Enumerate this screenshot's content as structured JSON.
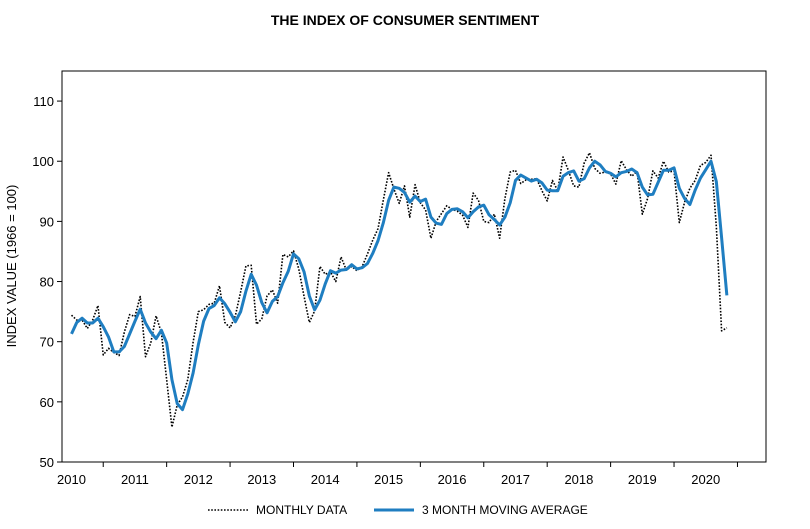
{
  "chart_data": {
    "type": "line",
    "title": "THE INDEX OF CONSUMER SENTIMENT",
    "xlabel": "",
    "ylabel": "INDEX VALUE (1966 = 100)",
    "ylim": [
      50,
      115
    ],
    "xlim": [
      2009.85,
      2020.95
    ],
    "yticks": [
      50,
      60,
      70,
      80,
      90,
      100,
      110
    ],
    "xticks": [
      2010,
      2011,
      2012,
      2013,
      2014,
      2015,
      2016,
      2017,
      2018,
      2019,
      2020
    ],
    "xtick_labels": [
      "2010",
      "2011",
      "2012",
      "2013",
      "2014",
      "2015",
      "2016",
      "2017",
      "2018",
      "2019",
      "2020"
    ],
    "grid": false,
    "legend_position": "bottom",
    "colors": {
      "monthly": "#000000",
      "moving_average": "#1f7ec1"
    },
    "series": [
      {
        "name": "MONTHLY DATA",
        "style": "dotted",
        "x": [
          2010.0,
          2010.083,
          2010.167,
          2010.25,
          2010.333,
          2010.417,
          2010.5,
          2010.583,
          2010.667,
          2010.75,
          2010.833,
          2010.917,
          2011.0,
          2011.083,
          2011.167,
          2011.25,
          2011.333,
          2011.417,
          2011.5,
          2011.583,
          2011.667,
          2011.75,
          2011.833,
          2011.917,
          2012.0,
          2012.083,
          2012.167,
          2012.25,
          2012.333,
          2012.417,
          2012.5,
          2012.583,
          2012.667,
          2012.75,
          2012.833,
          2012.917,
          2013.0,
          2013.083,
          2013.167,
          2013.25,
          2013.333,
          2013.417,
          2013.5,
          2013.583,
          2013.667,
          2013.75,
          2013.833,
          2013.917,
          2014.0,
          2014.083,
          2014.167,
          2014.25,
          2014.333,
          2014.417,
          2014.5,
          2014.583,
          2014.667,
          2014.75,
          2014.833,
          2014.917,
          2015.0,
          2015.083,
          2015.167,
          2015.25,
          2015.333,
          2015.417,
          2015.5,
          2015.583,
          2015.667,
          2015.75,
          2015.833,
          2015.917,
          2016.0,
          2016.083,
          2016.167,
          2016.25,
          2016.333,
          2016.417,
          2016.5,
          2016.583,
          2016.667,
          2016.75,
          2016.833,
          2016.917,
          2017.0,
          2017.083,
          2017.167,
          2017.25,
          2017.333,
          2017.417,
          2017.5,
          2017.583,
          2017.667,
          2017.75,
          2017.833,
          2017.917,
          2018.0,
          2018.083,
          2018.167,
          2018.25,
          2018.333,
          2018.417,
          2018.5,
          2018.583,
          2018.667,
          2018.75,
          2018.833,
          2018.917,
          2019.0,
          2019.083,
          2019.167,
          2019.25,
          2019.333,
          2019.417,
          2019.5,
          2019.583,
          2019.667,
          2019.75,
          2019.833,
          2019.917,
          2020.0,
          2020.083,
          2020.167,
          2020.25,
          2020.333
        ],
        "values": [
          74.4,
          73.6,
          73.6,
          72.2,
          73.6,
          76.0,
          67.8,
          68.9,
          68.2,
          67.7,
          71.6,
          74.5,
          74.2,
          77.5,
          67.5,
          69.8,
          74.3,
          71.5,
          63.7,
          55.8,
          59.5,
          60.8,
          63.7,
          69.9,
          75.0,
          75.3,
          76.2,
          76.4,
          79.3,
          73.2,
          72.3,
          74.3,
          78.3,
          82.6,
          82.7,
          72.9,
          73.8,
          77.6,
          78.6,
          76.4,
          84.5,
          84.1,
          85.1,
          82.1,
          77.5,
          73.2,
          75.1,
          82.5,
          81.2,
          81.6,
          80.0,
          84.1,
          81.9,
          82.5,
          81.8,
          82.5,
          84.6,
          86.9,
          88.8,
          93.6,
          98.1,
          95.4,
          93.0,
          95.9,
          90.7,
          96.1,
          93.1,
          91.9,
          87.2,
          90.0,
          91.3,
          92.6,
          92.0,
          91.7,
          91.0,
          89.0,
          94.7,
          93.5,
          90.0,
          89.8,
          91.2,
          87.2,
          93.8,
          98.2,
          98.5,
          96.3,
          96.9,
          97.0,
          97.1,
          95.1,
          93.4,
          96.8,
          95.1,
          100.7,
          98.5,
          95.9,
          95.7,
          99.7,
          101.4,
          98.8,
          98.0,
          98.2,
          97.9,
          96.2,
          100.1,
          98.6,
          97.5,
          98.3,
          91.2,
          93.8,
          98.4,
          97.2,
          100.0,
          98.2,
          98.4,
          89.8,
          93.2,
          95.5,
          96.8,
          99.3,
          99.8,
          101.0,
          89.1,
          71.8,
          72.3
        ]
      },
      {
        "name": "3 MONTH MOVING AVERAGE",
        "style": "solid",
        "x": [
          2010.0,
          2010.083,
          2010.167,
          2010.25,
          2010.333,
          2010.417,
          2010.5,
          2010.583,
          2010.667,
          2010.75,
          2010.833,
          2010.917,
          2011.0,
          2011.083,
          2011.167,
          2011.25,
          2011.333,
          2011.417,
          2011.5,
          2011.583,
          2011.667,
          2011.75,
          2011.833,
          2011.917,
          2012.0,
          2012.083,
          2012.167,
          2012.25,
          2012.333,
          2012.417,
          2012.5,
          2012.583,
          2012.667,
          2012.75,
          2012.833,
          2012.917,
          2013.0,
          2013.083,
          2013.167,
          2013.25,
          2013.333,
          2013.417,
          2013.5,
          2013.583,
          2013.667,
          2013.75,
          2013.833,
          2013.917,
          2014.0,
          2014.083,
          2014.167,
          2014.25,
          2014.333,
          2014.417,
          2014.5,
          2014.583,
          2014.667,
          2014.75,
          2014.833,
          2014.917,
          2015.0,
          2015.083,
          2015.167,
          2015.25,
          2015.333,
          2015.417,
          2015.5,
          2015.583,
          2015.667,
          2015.75,
          2015.833,
          2015.917,
          2016.0,
          2016.083,
          2016.167,
          2016.25,
          2016.333,
          2016.417,
          2016.5,
          2016.583,
          2016.667,
          2016.75,
          2016.833,
          2016.917,
          2017.0,
          2017.083,
          2017.167,
          2017.25,
          2017.333,
          2017.417,
          2017.5,
          2017.583,
          2017.667,
          2017.75,
          2017.833,
          2017.917,
          2018.0,
          2018.083,
          2018.167,
          2018.25,
          2018.333,
          2018.417,
          2018.5,
          2018.583,
          2018.667,
          2018.75,
          2018.833,
          2018.917,
          2019.0,
          2019.083,
          2019.167,
          2019.25,
          2019.333,
          2019.417,
          2019.5,
          2019.583,
          2019.667,
          2019.75,
          2019.833,
          2019.917,
          2020.0,
          2020.083,
          2020.167,
          2020.25,
          2020.333
        ],
        "values": [
          71.3,
          73.2,
          73.9,
          73.1,
          73.1,
          73.9,
          72.5,
          70.8,
          68.3,
          68.3,
          69.2,
          71.3,
          73.4,
          75.4,
          73.1,
          71.6,
          70.5,
          71.9,
          69.8,
          63.7,
          59.7,
          58.7,
          61.3,
          64.8,
          69.5,
          73.4,
          75.5,
          76.0,
          77.3,
          76.3,
          74.9,
          73.3,
          75.0,
          78.4,
          81.2,
          79.4,
          76.5,
          74.8,
          76.7,
          77.5,
          79.8,
          81.7,
          84.6,
          83.8,
          81.6,
          77.6,
          75.3,
          76.9,
          79.6,
          81.8,
          81.4,
          81.9,
          82.0,
          82.8,
          82.1,
          82.3,
          83.0,
          84.7,
          86.8,
          89.8,
          93.5,
          95.7,
          95.5,
          94.8,
          93.2,
          94.2,
          93.3,
          93.7,
          90.7,
          89.7,
          89.5,
          91.3,
          92.0,
          92.1,
          91.6,
          90.6,
          91.6,
          92.4,
          92.7,
          91.1,
          90.3,
          89.4,
          90.7,
          93.1,
          96.8,
          97.7,
          97.2,
          96.7,
          97.0,
          96.4,
          95.2,
          95.1,
          95.1,
          97.5,
          98.1,
          98.4,
          96.7,
          97.1,
          98.9,
          100.0,
          99.4,
          98.3,
          98.0,
          97.4,
          98.1,
          98.3,
          98.7,
          98.1,
          95.7,
          94.4,
          94.5,
          96.5,
          98.5,
          98.5,
          98.9,
          95.5,
          93.8,
          92.8,
          95.2,
          97.2,
          98.6,
          100.0,
          96.6,
          87.3,
          77.7
        ]
      }
    ]
  }
}
